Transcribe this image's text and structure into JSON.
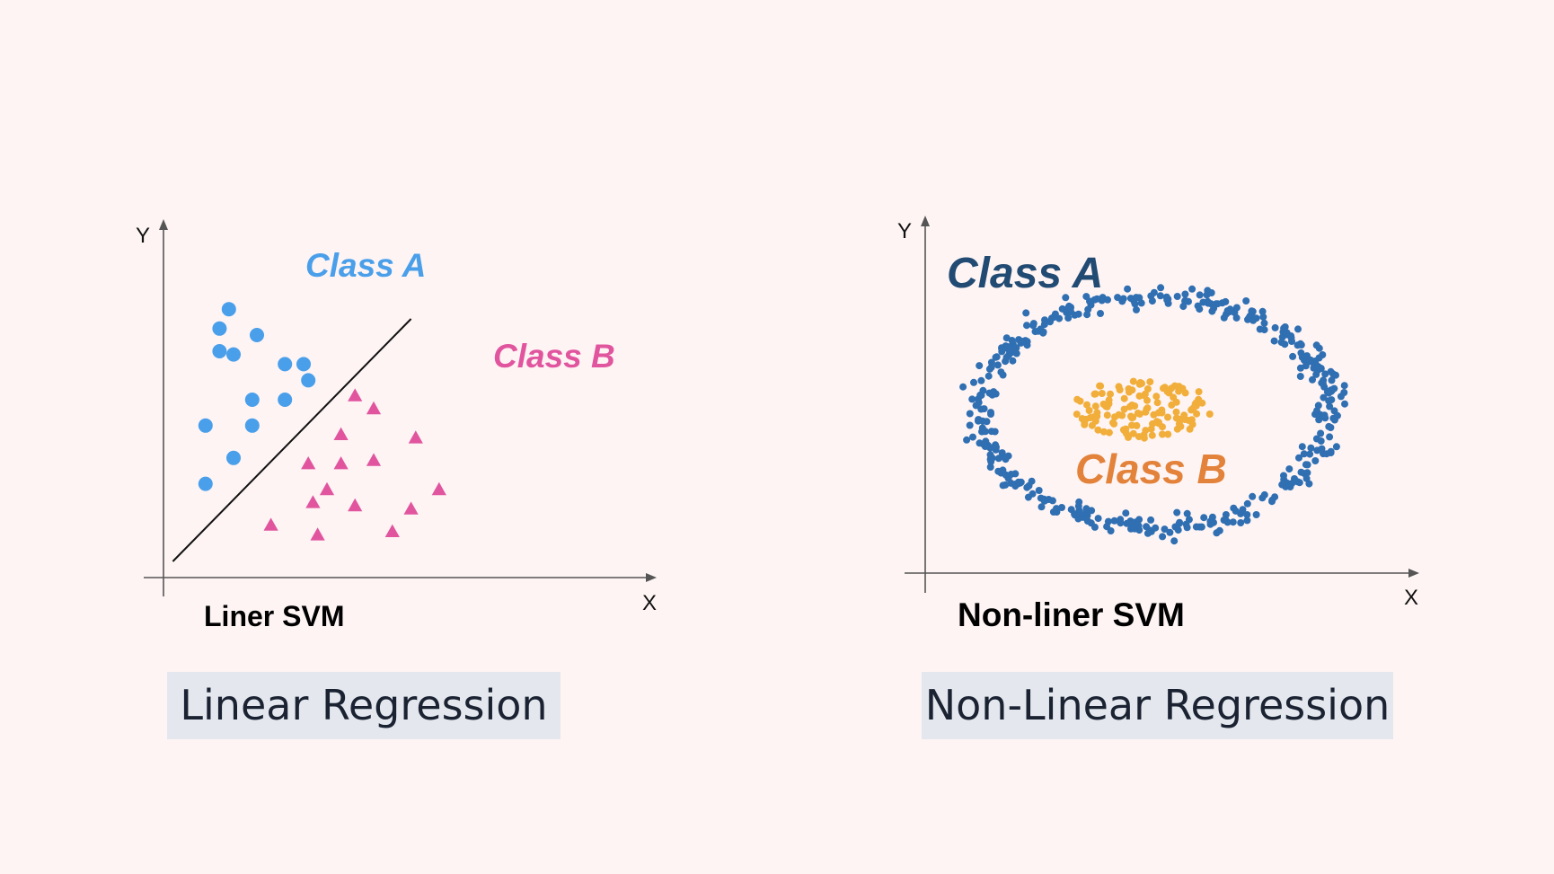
{
  "left_panel": {
    "axis_y_label": "Y",
    "axis_x_label": "X",
    "class_a_label": "Class A",
    "class_b_label": "Class B",
    "plot_label": "Liner SVM",
    "caption": "Linear Regression",
    "class_a_color": "#4a9fea",
    "class_b_color": "#e1559f",
    "class_a_marker": "circle",
    "class_b_marker": "triangle",
    "class_a_points": [
      [
        1.4,
        8.3
      ],
      [
        1.2,
        7.7
      ],
      [
        1.2,
        7.0
      ],
      [
        1.5,
        6.9
      ],
      [
        2.0,
        7.5
      ],
      [
        2.6,
        6.6
      ],
      [
        3.0,
        6.6
      ],
      [
        3.1,
        6.1
      ],
      [
        1.9,
        5.5
      ],
      [
        2.6,
        5.5
      ],
      [
        0.9,
        4.7
      ],
      [
        1.9,
        4.7
      ],
      [
        1.5,
        3.7
      ],
      [
        0.9,
        2.9
      ]
    ],
    "class_b_points": [
      [
        4.1,
        5.6
      ],
      [
        4.5,
        5.2
      ],
      [
        3.8,
        4.4
      ],
      [
        5.4,
        4.3
      ],
      [
        4.5,
        3.6
      ],
      [
        3.1,
        3.5
      ],
      [
        3.8,
        3.5
      ],
      [
        3.5,
        2.7
      ],
      [
        4.1,
        2.2
      ],
      [
        5.3,
        2.1
      ],
      [
        5.9,
        2.7
      ],
      [
        3.2,
        2.3
      ],
      [
        2.3,
        1.6
      ],
      [
        3.3,
        1.3
      ],
      [
        4.9,
        1.4
      ]
    ],
    "separator_line": [
      [
        0.2,
        0.5
      ],
      [
        5.3,
        8.0
      ]
    ]
  },
  "right_panel": {
    "axis_y_label": "Y",
    "axis_x_label": "X",
    "class_a_label": "Class A",
    "class_b_label": "Class B",
    "plot_label": "Non-liner SVM",
    "caption": "Non-Linear Regression",
    "class_a_color": "#2f6fb2",
    "class_b_color": "#f1ae3a",
    "class_a_label_color": "#224b73",
    "class_b_label_color": "#e3823a",
    "class_a_distribution": "ring around center",
    "class_b_distribution": "cluster at center"
  }
}
